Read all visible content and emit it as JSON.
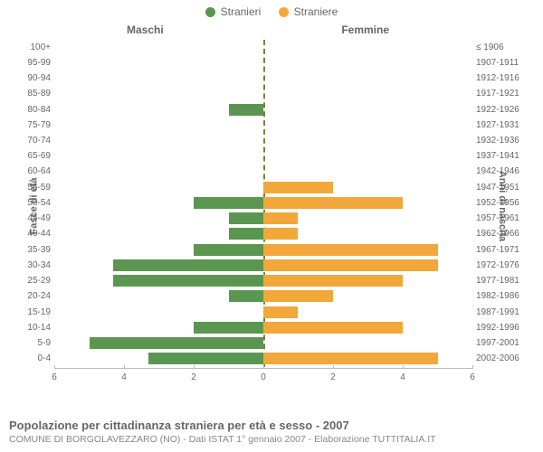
{
  "legend": {
    "male": {
      "label": "Stranieri",
      "color": "#5b9651"
    },
    "female": {
      "label": "Straniere",
      "color": "#f2a73b"
    }
  },
  "headers": {
    "left": "Maschi",
    "right": "Femmine"
  },
  "axis_titles": {
    "left": "Fasce di età",
    "right": "Anni di nascita"
  },
  "chart": {
    "type": "population-pyramid",
    "xmax": 6,
    "xticks": [
      6,
      4,
      2,
      0,
      2,
      4,
      6
    ],
    "background_color": "#ffffff",
    "bar_color_left": "#5b9651",
    "bar_color_right": "#f2a73b",
    "centerline_color": "#8a7a3a",
    "rows": [
      {
        "age": "100+",
        "birth": "≤ 1906",
        "m": 0,
        "f": 0
      },
      {
        "age": "95-99",
        "birth": "1907-1911",
        "m": 0,
        "f": 0
      },
      {
        "age": "90-94",
        "birth": "1912-1916",
        "m": 0,
        "f": 0
      },
      {
        "age": "85-89",
        "birth": "1917-1921",
        "m": 0,
        "f": 0
      },
      {
        "age": "80-84",
        "birth": "1922-1926",
        "m": 1,
        "f": 0
      },
      {
        "age": "75-79",
        "birth": "1927-1931",
        "m": 0,
        "f": 0
      },
      {
        "age": "70-74",
        "birth": "1932-1936",
        "m": 0,
        "f": 0
      },
      {
        "age": "65-69",
        "birth": "1937-1941",
        "m": 0,
        "f": 0
      },
      {
        "age": "60-64",
        "birth": "1942-1946",
        "m": 0,
        "f": 0
      },
      {
        "age": "55-59",
        "birth": "1947-1951",
        "m": 0,
        "f": 2
      },
      {
        "age": "50-54",
        "birth": "1952-1956",
        "m": 2,
        "f": 4
      },
      {
        "age": "45-49",
        "birth": "1957-1961",
        "m": 1,
        "f": 1
      },
      {
        "age": "40-44",
        "birth": "1962-1966",
        "m": 1,
        "f": 1
      },
      {
        "age": "35-39",
        "birth": "1967-1971",
        "m": 2,
        "f": 5
      },
      {
        "age": "30-34",
        "birth": "1972-1976",
        "m": 4.3,
        "f": 5
      },
      {
        "age": "25-29",
        "birth": "1977-1981",
        "m": 4.3,
        "f": 4
      },
      {
        "age": "20-24",
        "birth": "1982-1986",
        "m": 1,
        "f": 2
      },
      {
        "age": "15-19",
        "birth": "1987-1991",
        "m": 0,
        "f": 1
      },
      {
        "age": "10-14",
        "birth": "1992-1996",
        "m": 2,
        "f": 4
      },
      {
        "age": "5-9",
        "birth": "1997-2001",
        "m": 5,
        "f": 0
      },
      {
        "age": "0-4",
        "birth": "2002-2006",
        "m": 3.3,
        "f": 5
      }
    ]
  },
  "footer": {
    "title": "Popolazione per cittadinanza straniera per età e sesso - 2007",
    "source": "COMUNE DI BORGOLAVEZZARO (NO) - Dati ISTAT 1° gennaio 2007 - Elaborazione TUTTITALIA.IT"
  }
}
